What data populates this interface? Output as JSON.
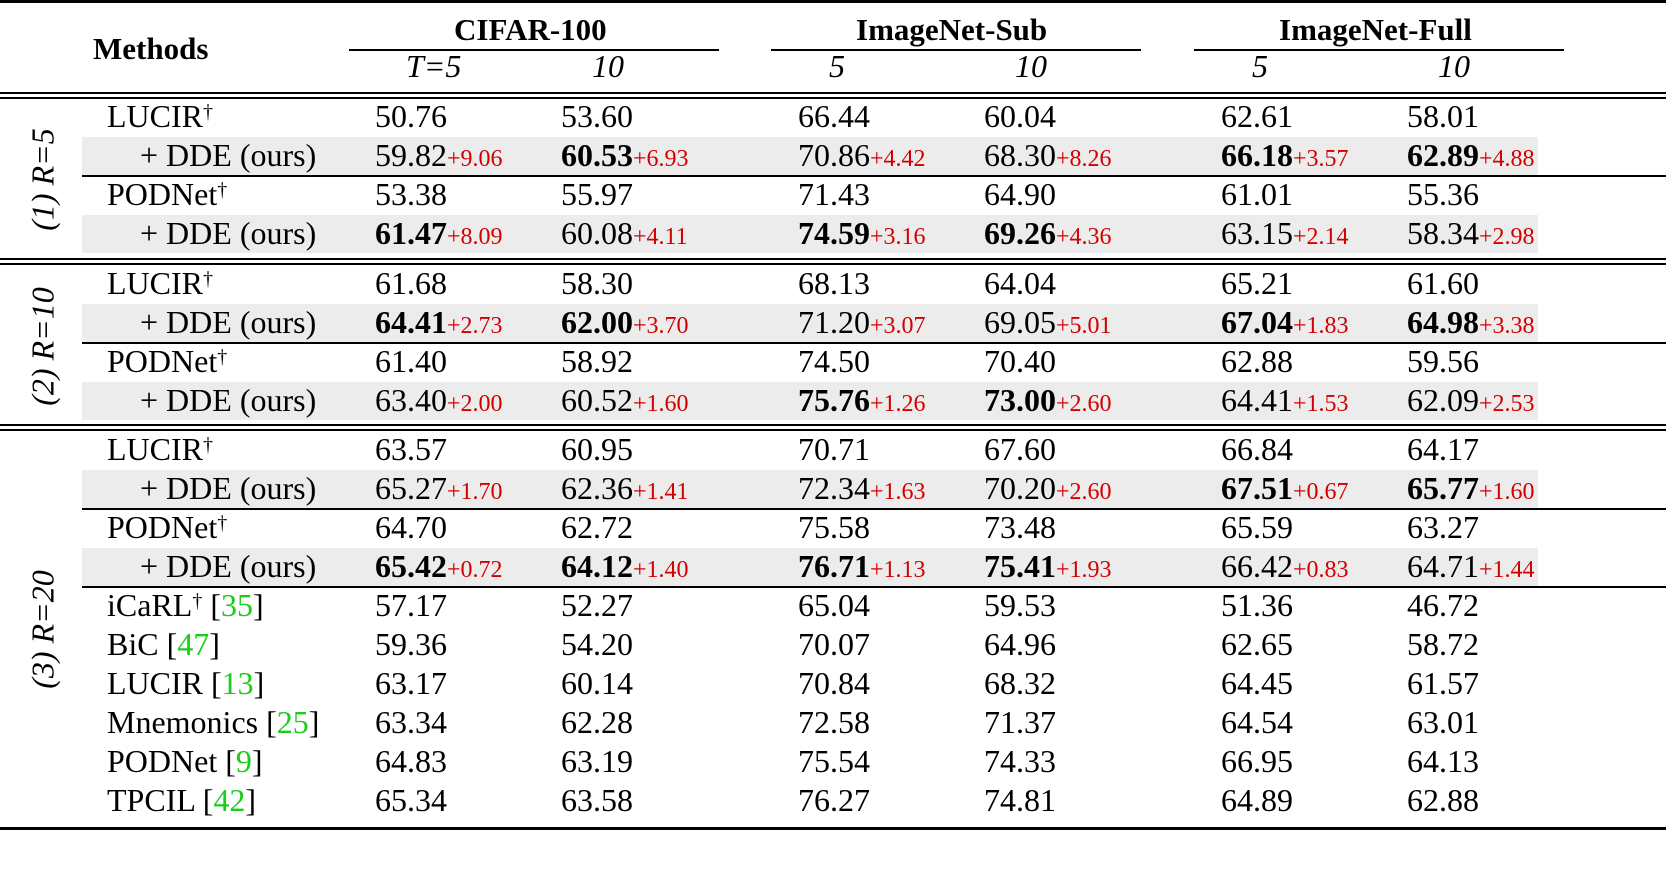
{
  "header": {
    "methods": "Methods",
    "datasets": [
      "CIFAR-100",
      "ImageNet-Sub",
      "ImageNet-Full"
    ],
    "steps": [
      "T=5",
      "10",
      "5",
      "10",
      "5",
      "10"
    ]
  },
  "groups": [
    {
      "label": "(1) R=5",
      "rows": [
        {
          "method": "LUCIR",
          "dagger": "†",
          "shaded": false,
          "cells": [
            {
              "v": "50.76"
            },
            {
              "v": "53.60"
            },
            {
              "v": "66.44"
            },
            {
              "v": "60.04"
            },
            {
              "v": "62.61"
            },
            {
              "v": "58.01"
            }
          ]
        },
        {
          "method": "+ DDE (ours)",
          "indent": true,
          "shaded": true,
          "cells": [
            {
              "v": "59.82",
              "d": "+9.06"
            },
            {
              "v": "60.53",
              "d": "+6.93",
              "b": true
            },
            {
              "v": "70.86",
              "d": "+4.42"
            },
            {
              "v": "68.30",
              "d": "+8.26"
            },
            {
              "v": "66.18",
              "d": "+3.57",
              "b": true
            },
            {
              "v": "62.89",
              "d": "+4.88",
              "b": true
            }
          ]
        },
        {
          "method": "PODNet",
          "dagger": "†",
          "shaded": false,
          "cells": [
            {
              "v": "53.38"
            },
            {
              "v": "55.97"
            },
            {
              "v": "71.43"
            },
            {
              "v": "64.90"
            },
            {
              "v": "61.01"
            },
            {
              "v": "55.36"
            }
          ]
        },
        {
          "method": "+ DDE (ours)",
          "indent": true,
          "shaded": true,
          "cells": [
            {
              "v": "61.47",
              "d": "+8.09",
              "b": true
            },
            {
              "v": "60.08",
              "d": "+4.11"
            },
            {
              "v": "74.59",
              "d": "+3.16",
              "b": true
            },
            {
              "v": "69.26",
              "d": "+4.36",
              "b": true
            },
            {
              "v": "63.15",
              "d": "+2.14"
            },
            {
              "v": "58.34",
              "d": "+2.98"
            }
          ]
        }
      ]
    },
    {
      "label": "(2) R=10",
      "rows": [
        {
          "method": "LUCIR",
          "dagger": "†",
          "shaded": false,
          "cells": [
            {
              "v": "61.68"
            },
            {
              "v": "58.30"
            },
            {
              "v": "68.13"
            },
            {
              "v": "64.04"
            },
            {
              "v": "65.21"
            },
            {
              "v": "61.60"
            }
          ]
        },
        {
          "method": "+ DDE (ours)",
          "indent": true,
          "shaded": true,
          "cells": [
            {
              "v": "64.41",
              "d": "+2.73",
              "b": true
            },
            {
              "v": "62.00",
              "d": "+3.70",
              "b": true
            },
            {
              "v": "71.20",
              "d": "+3.07"
            },
            {
              "v": "69.05",
              "d": "+5.01"
            },
            {
              "v": "67.04",
              "d": "+1.83",
              "b": true
            },
            {
              "v": "64.98",
              "d": "+3.38",
              "b": true
            }
          ]
        },
        {
          "method": "PODNet",
          "dagger": "†",
          "shaded": false,
          "cells": [
            {
              "v": "61.40"
            },
            {
              "v": "58.92"
            },
            {
              "v": "74.50"
            },
            {
              "v": "70.40"
            },
            {
              "v": "62.88"
            },
            {
              "v": "59.56"
            }
          ]
        },
        {
          "method": "+ DDE (ours)",
          "indent": true,
          "shaded": true,
          "cells": [
            {
              "v": "63.40",
              "d": "+2.00"
            },
            {
              "v": "60.52",
              "d": "+1.60"
            },
            {
              "v": "75.76",
              "d": "+1.26",
              "b": true
            },
            {
              "v": "73.00",
              "d": "+2.60",
              "b": true
            },
            {
              "v": "64.41",
              "d": "+1.53"
            },
            {
              "v": "62.09",
              "d": "+2.53"
            }
          ]
        }
      ]
    },
    {
      "label": "(3) R=20",
      "rows": [
        {
          "method": "LUCIR",
          "dagger": "†",
          "shaded": false,
          "cells": [
            {
              "v": "63.57"
            },
            {
              "v": "60.95"
            },
            {
              "v": "70.71"
            },
            {
              "v": "67.60"
            },
            {
              "v": "66.84"
            },
            {
              "v": "64.17"
            }
          ]
        },
        {
          "method": "+ DDE (ours)",
          "indent": true,
          "shaded": true,
          "cells": [
            {
              "v": "65.27",
              "d": "+1.70"
            },
            {
              "v": "62.36",
              "d": "+1.41"
            },
            {
              "v": "72.34",
              "d": "+1.63"
            },
            {
              "v": "70.20",
              "d": "+2.60"
            },
            {
              "v": "67.51",
              "d": "+0.67",
              "b": true
            },
            {
              "v": "65.77",
              "d": "+1.60",
              "b": true
            }
          ]
        },
        {
          "method": "PODNet",
          "dagger": "†",
          "shaded": false,
          "cells": [
            {
              "v": "64.70"
            },
            {
              "v": "62.72"
            },
            {
              "v": "75.58"
            },
            {
              "v": "73.48"
            },
            {
              "v": "65.59"
            },
            {
              "v": "63.27"
            }
          ]
        },
        {
          "method": "+ DDE (ours)",
          "indent": true,
          "shaded": true,
          "cells": [
            {
              "v": "65.42",
              "d": "+0.72",
              "b": true
            },
            {
              "v": "64.12",
              "d": "+1.40",
              "b": true
            },
            {
              "v": "76.71",
              "d": "+1.13",
              "b": true
            },
            {
              "v": "75.41",
              "d": "+1.93",
              "b": true
            },
            {
              "v": "66.42",
              "d": "+0.83"
            },
            {
              "v": "64.71",
              "d": "+1.44"
            }
          ]
        },
        {
          "method": "iCaRL",
          "dagger": "†",
          "ref": "35",
          "shaded": false,
          "cells": [
            {
              "v": "57.17"
            },
            {
              "v": "52.27"
            },
            {
              "v": "65.04"
            },
            {
              "v": "59.53"
            },
            {
              "v": "51.36"
            },
            {
              "v": "46.72"
            }
          ]
        },
        {
          "method": "BiC",
          "ref": "47",
          "shaded": false,
          "cells": [
            {
              "v": "59.36"
            },
            {
              "v": "54.20"
            },
            {
              "v": "70.07"
            },
            {
              "v": "64.96"
            },
            {
              "v": "62.65"
            },
            {
              "v": "58.72"
            }
          ]
        },
        {
          "method": "LUCIR",
          "ref": "13",
          "shaded": false,
          "cells": [
            {
              "v": "63.17"
            },
            {
              "v": "60.14"
            },
            {
              "v": "70.84"
            },
            {
              "v": "68.32"
            },
            {
              "v": "64.45"
            },
            {
              "v": "61.57"
            }
          ]
        },
        {
          "method": "Mnemonics",
          "ref": "25",
          "shaded": false,
          "cells": [
            {
              "v": "63.34"
            },
            {
              "v": "62.28"
            },
            {
              "v": "72.58"
            },
            {
              "v": "71.37"
            },
            {
              "v": "64.54"
            },
            {
              "v": "63.01"
            }
          ]
        },
        {
          "method": "PODNet",
          "ref": "9",
          "shaded": false,
          "cells": [
            {
              "v": "64.83"
            },
            {
              "v": "63.19"
            },
            {
              "v": "75.54"
            },
            {
              "v": "74.33"
            },
            {
              "v": "66.95"
            },
            {
              "v": "64.13"
            }
          ]
        },
        {
          "method": "TPCIL",
          "ref": "42",
          "shaded": false,
          "cells": [
            {
              "v": "65.34"
            },
            {
              "v": "63.58"
            },
            {
              "v": "76.27"
            },
            {
              "v": "74.81"
            },
            {
              "v": "64.89"
            },
            {
              "v": "62.88"
            }
          ]
        }
      ]
    }
  ]
}
